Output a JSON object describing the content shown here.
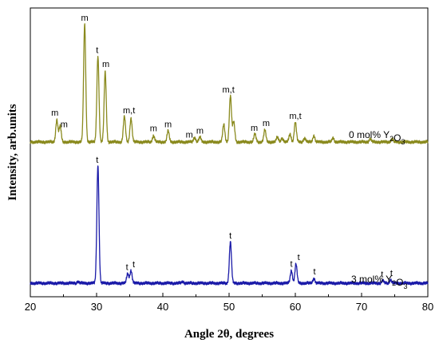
{
  "chart_data": {
    "type": "line",
    "xlabel": "Angle 2θ, degrees",
    "ylabel": "Intensity, arb.units",
    "xlim": [
      20,
      80
    ],
    "xticks": [
      "20",
      "30",
      "40",
      "50",
      "60",
      "70",
      "80"
    ],
    "y_ticks_shown": false,
    "grid": false,
    "series": [
      {
        "name": "0 mol% Y₂O₃",
        "name_parts": {
          "prefix": "0 mol% Y",
          "sub1": "2",
          "mid": "O",
          "sub2": "3"
        },
        "color": "#8a8a1e",
        "baseline": 178,
        "peaks": [
          [
            24.0,
            28
          ],
          [
            24.5,
            20
          ],
          [
            28.2,
            148
          ],
          [
            30.2,
            108
          ],
          [
            31.3,
            88
          ],
          [
            34.2,
            32
          ],
          [
            35.2,
            30
          ],
          [
            38.6,
            8
          ],
          [
            40.8,
            14
          ],
          [
            44.8,
            6
          ],
          [
            45.6,
            6
          ],
          [
            49.2,
            22
          ],
          [
            50.2,
            58
          ],
          [
            50.7,
            25
          ],
          [
            53.9,
            10
          ],
          [
            55.4,
            15
          ],
          [
            57.3,
            6
          ],
          [
            58.0,
            5
          ],
          [
            59.2,
            10
          ],
          [
            60.0,
            25
          ],
          [
            61.4,
            5
          ],
          [
            62.8,
            8
          ],
          [
            65.7,
            5
          ],
          [
            71.3,
            4
          ],
          [
            74.6,
            4
          ]
        ],
        "peak_labels": [
          {
            "x": 23.7,
            "text": "m"
          },
          {
            "x": 25.1,
            "text": "m"
          },
          {
            "x": 28.2,
            "text": "m"
          },
          {
            "x": 30.1,
            "text": "t"
          },
          {
            "x": 31.4,
            "text": "m"
          },
          {
            "x": 34.9,
            "text": "m,t"
          },
          {
            "x": 38.6,
            "text": "m"
          },
          {
            "x": 40.8,
            "text": "m"
          },
          {
            "x": 44.0,
            "text": "m"
          },
          {
            "x": 45.6,
            "text": "m"
          },
          {
            "x": 49.9,
            "text": "m,t"
          },
          {
            "x": 53.8,
            "text": "m"
          },
          {
            "x": 55.6,
            "text": "m"
          },
          {
            "x": 60.0,
            "text": "m,t"
          }
        ]
      },
      {
        "name": "3 mol% Y₂O₃",
        "name_parts": {
          "prefix": "3 mol% Y",
          "sub1": "2",
          "mid": "O",
          "sub2": "3"
        },
        "color": "#1a1aa8",
        "baseline": 355,
        "peaks": [
          [
            30.2,
            148
          ],
          [
            34.7,
            12
          ],
          [
            35.2,
            16
          ],
          [
            50.2,
            52
          ],
          [
            59.4,
            16
          ],
          [
            60.1,
            24
          ],
          [
            62.8,
            6
          ],
          [
            73.2,
            3
          ],
          [
            74.4,
            4
          ],
          [
            27.2,
            2
          ],
          [
            43.0,
            2
          ]
        ],
        "peak_labels": [
          {
            "x": 30.1,
            "text": "t"
          },
          {
            "x": 34.6,
            "text": "t"
          },
          {
            "x": 35.6,
            "text": "t"
          },
          {
            "x": 50.2,
            "text": "t"
          },
          {
            "x": 59.4,
            "text": "t"
          },
          {
            "x": 60.5,
            "text": "t"
          },
          {
            "x": 62.9,
            "text": "t"
          },
          {
            "x": 73.1,
            "text": "t"
          },
          {
            "x": 74.5,
            "text": "t"
          }
        ]
      }
    ]
  }
}
